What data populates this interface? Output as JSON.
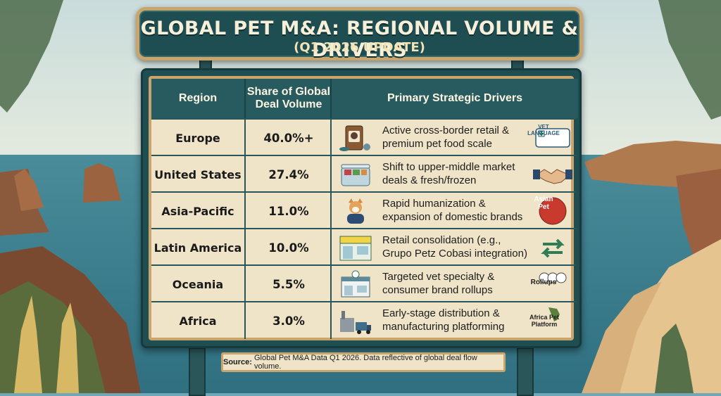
{
  "title": {
    "main": "GLOBAL PET M&A: REGIONAL VOLUME & DRIVERS",
    "sub": "(Q1 2026 UPDATE)"
  },
  "table": {
    "headers": {
      "region": "Region",
      "share": "Share of Global Deal Volume",
      "drivers": "Primary Strategic Drivers"
    },
    "rows": [
      {
        "region": "Europe",
        "share": "40.0%+",
        "driver": "Active cross-border retail & premium pet food scale",
        "driver_icon": "pet-food-bag-icon",
        "tag_icon": "vet-language-icon",
        "tag_label": "VET LANGUAGE"
      },
      {
        "region": "United States",
        "share": "27.4%",
        "driver": "Shift to upper-middle market deals & fresh/frozen",
        "driver_icon": "fresh-food-container-icon",
        "tag_icon": "handshake-icon",
        "tag_label": ""
      },
      {
        "region": "Asia-Pacific",
        "share": "11.0%",
        "driver": "Rapid humanization & expansion of domestic brands",
        "driver_icon": "corgi-dog-icon",
        "tag_icon": "asian-pet-badge-icon",
        "tag_label": "Asian Pet"
      },
      {
        "region": "Latin America",
        "share": "10.0%",
        "driver": "Retail consolidation (e.g., Grupo Petz Cobasi integration)",
        "driver_icon": "storefront-icon",
        "tag_icon": "swap-arrows-icon",
        "tag_label": ""
      },
      {
        "region": "Oceania",
        "share": "5.5%",
        "driver": "Targeted vet specialty & consumer brand rollups",
        "driver_icon": "vet-clinic-icon",
        "tag_icon": "rollups-icon",
        "tag_label": "Rollups"
      },
      {
        "region": "Africa",
        "share": "3.0%",
        "driver": "Early-stage distribution & manufacturing platforming",
        "driver_icon": "factory-truck-icon",
        "tag_icon": "africa-map-icon",
        "tag_label": "Africa Pet Platform"
      }
    ]
  },
  "source": {
    "label": "Source:",
    "text": "Global Pet M&A Data Q1 2026. Data reflective of global deal flow volume."
  },
  "colors": {
    "board": "#1f4e52",
    "frame": "#c9a56b",
    "parchment": "#efe4c8",
    "sea": "#3f8596",
    "sky": "#cfe1e3"
  }
}
